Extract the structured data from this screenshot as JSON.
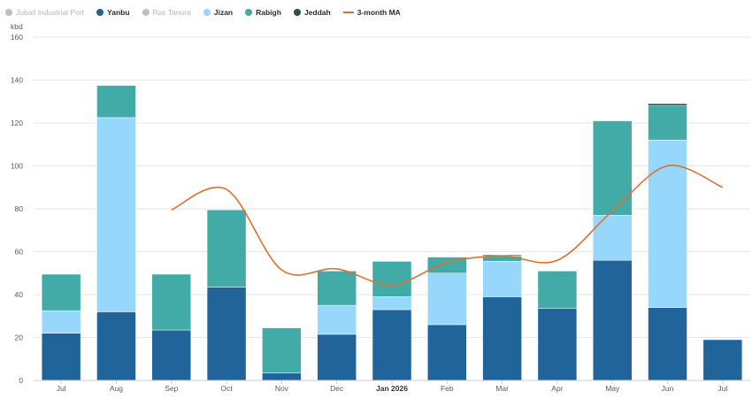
{
  "legend": {
    "items": [
      {
        "label": "Jubail Industrial Port",
        "color": "#bfbfbf",
        "active": false,
        "kind": "dot"
      },
      {
        "label": "Yanbu",
        "color": "#21649a",
        "active": true,
        "kind": "dot"
      },
      {
        "label": "Ras Tanura",
        "color": "#bfbfbf",
        "active": false,
        "kind": "dot"
      },
      {
        "label": "Jizan",
        "color": "#96d7fb",
        "active": true,
        "kind": "dot"
      },
      {
        "label": "Rabigh",
        "color": "#42aba8",
        "active": true,
        "kind": "dot"
      },
      {
        "label": "Jeddah",
        "color": "#2c4e4c",
        "active": true,
        "kind": "dot"
      },
      {
        "label": "3-month MA",
        "color": "#e06f2b",
        "active": true,
        "kind": "line"
      }
    ]
  },
  "chart_data": {
    "type": "bar",
    "stacked": true,
    "unit_label": "kbd",
    "categories": [
      "Jul",
      "Aug",
      "Sep",
      "Oct",
      "Nov",
      "Dec",
      "Jan 2026",
      "Feb",
      "Mar",
      "Apr",
      "May",
      "Jun",
      "Jul"
    ],
    "bold_categories": [
      "Jan 2026"
    ],
    "ylim": [
      0,
      160
    ],
    "yticks": [
      0,
      20,
      40,
      60,
      80,
      100,
      120,
      140,
      160
    ],
    "grid": true,
    "series": [
      {
        "name": "Yanbu",
        "color": "#21649a",
        "values": [
          22,
          32,
          23.5,
          43.5,
          3.5,
          21.5,
          33,
          26,
          39,
          33.5,
          56,
          34,
          19
        ]
      },
      {
        "name": "Jizan",
        "color": "#96d7fb",
        "values": [
          10.5,
          90.5,
          0,
          0,
          0,
          13.5,
          6,
          24,
          16.5,
          0,
          21,
          78,
          0
        ]
      },
      {
        "name": "Rabigh",
        "color": "#42aba8",
        "values": [
          17,
          15,
          26,
          36,
          21,
          16,
          16.5,
          7.5,
          2.5,
          17.5,
          44,
          16,
          0
        ]
      },
      {
        "name": "Jeddah",
        "color": "#2c4e4c",
        "values": [
          0,
          0,
          0,
          0,
          0,
          0,
          0,
          0,
          0.5,
          0,
          0,
          1,
          0
        ]
      }
    ],
    "moving_average": {
      "name": "3-month MA",
      "color": "#e06f2b",
      "values": [
        null,
        null,
        79.5,
        89,
        51.5,
        52,
        44.5,
        55,
        58,
        56,
        79,
        100,
        90
      ]
    }
  }
}
